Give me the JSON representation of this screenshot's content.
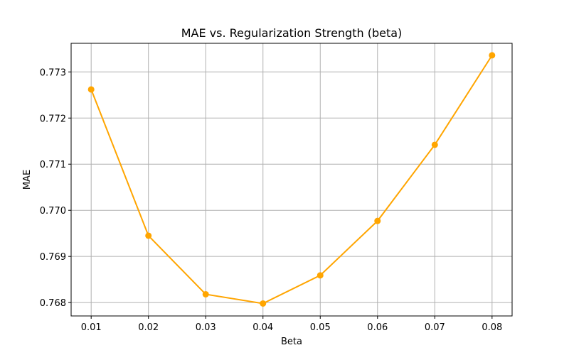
{
  "chart_data": {
    "type": "line",
    "title": "MAE vs. Regularization Strength (beta)",
    "xlabel": "Beta",
    "ylabel": "MAE",
    "x": [
      0.01,
      0.02,
      0.03,
      0.04,
      0.05,
      0.06,
      0.07,
      0.08
    ],
    "x_tick_labels": [
      "0.01",
      "0.02",
      "0.03",
      "0.04",
      "0.05",
      "0.06",
      "0.07",
      "0.08"
    ],
    "y_ticks": [
      0.768,
      0.769,
      0.77,
      0.771,
      0.772,
      0.773
    ],
    "y_tick_labels": [
      "0.768",
      "0.769",
      "0.770",
      "0.771",
      "0.772",
      "0.773"
    ],
    "xlim": [
      0.0065,
      0.0835
    ],
    "ylim": [
      0.76771,
      0.77362
    ],
    "grid": true,
    "series": [
      {
        "values": [
          0.77262,
          0.76945,
          0.76818,
          0.76798,
          0.76859,
          0.76977,
          0.77142,
          0.77336
        ],
        "color": "#FFA500",
        "marker": "circle"
      }
    ]
  }
}
